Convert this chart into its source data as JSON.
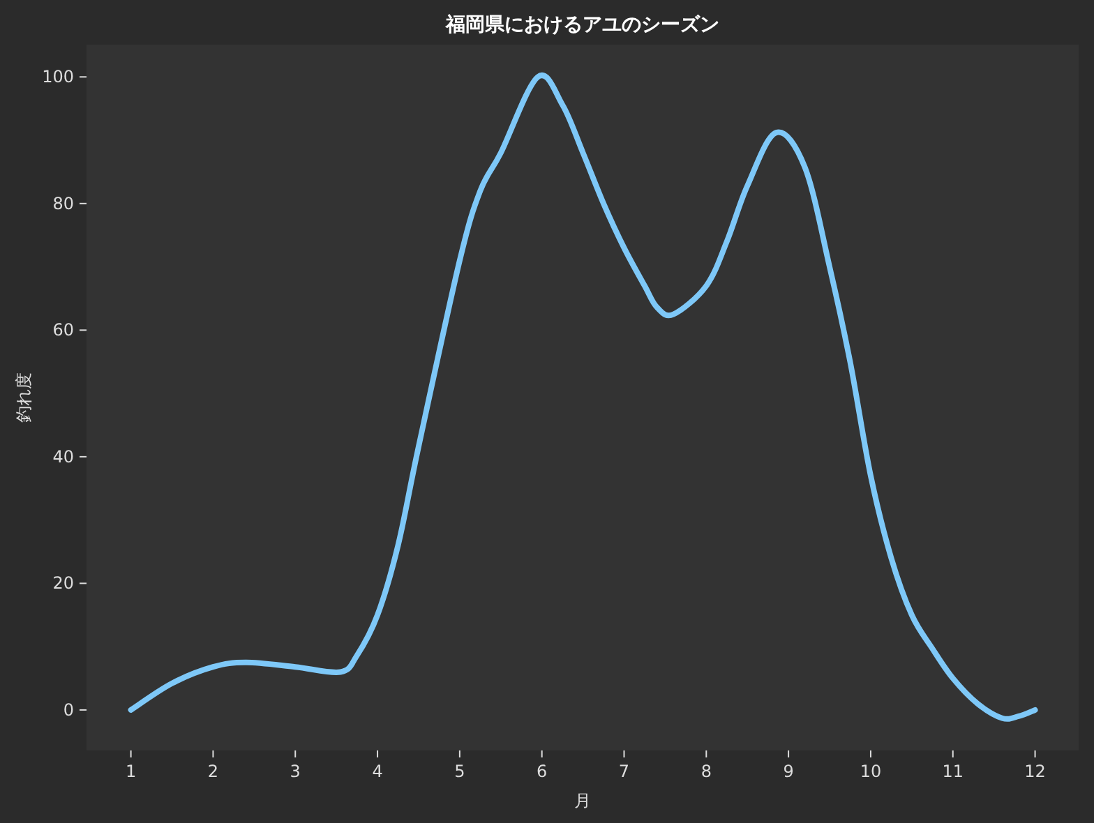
{
  "chart_data": {
    "type": "line",
    "title": "福岡県におけるアユのシーズン",
    "xlabel": "月",
    "ylabel": "釣れ度",
    "x": [
      1,
      1.5,
      2,
      2.4,
      3,
      3.55,
      3.75,
      4,
      4.25,
      4.5,
      5,
      5.25,
      5.5,
      5.95,
      6.25,
      6.5,
      6.75,
      7,
      7.25,
      7.4,
      7.6,
      8,
      8.25,
      8.5,
      8.85,
      9.2,
      9.5,
      9.75,
      10,
      10.25,
      10.5,
      10.75,
      11,
      11.3,
      11.6,
      11.8,
      12
    ],
    "series": [
      {
        "color": "#7ec8f8",
        "values": [
          0,
          4.2,
          6.8,
          7.5,
          6.8,
          6,
          8.6,
          15,
          26,
          41.6,
          71,
          82,
          88,
          100,
          95.6,
          88,
          80,
          73,
          67,
          63.6,
          62.5,
          67,
          74,
          82.8,
          91.2,
          85.7,
          70,
          55,
          37,
          24,
          15,
          9.7,
          5,
          1,
          -1.3,
          -1,
          0
        ]
      }
    ],
    "xlim": [
      0.46,
      12.53
    ],
    "ylim": [
      -6.4,
      105.1
    ],
    "xticks": [
      1,
      2,
      3,
      4,
      5,
      6,
      7,
      8,
      9,
      10,
      11,
      12
    ],
    "yticks": [
      0,
      20,
      40,
      60,
      80,
      100
    ],
    "grid": false,
    "marker": "none",
    "line_style": "solid"
  }
}
